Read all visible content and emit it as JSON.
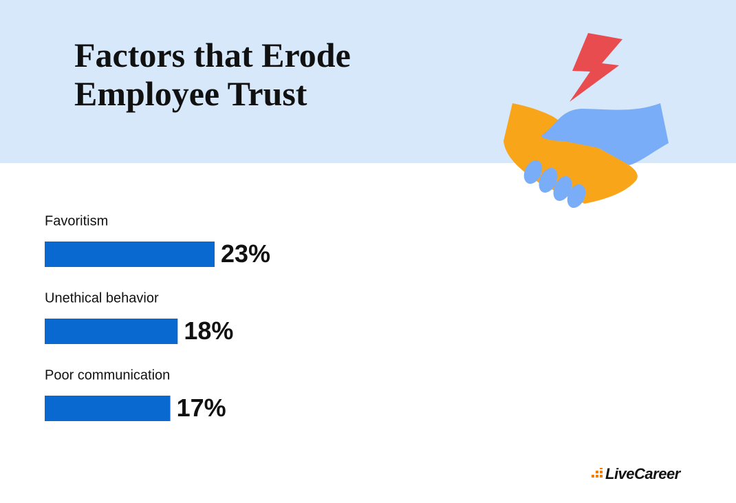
{
  "chart_data": {
    "type": "bar",
    "orientation": "horizontal",
    "title": "Factors that Erode Employee Trust",
    "categories": [
      "Favoritism",
      "Unethical behavior",
      "Poor communication"
    ],
    "values": [
      23,
      18,
      17
    ],
    "value_labels": [
      "23%",
      "18%",
      "17%"
    ],
    "color": "#0a69d0"
  },
  "logo": "LiveCareer"
}
